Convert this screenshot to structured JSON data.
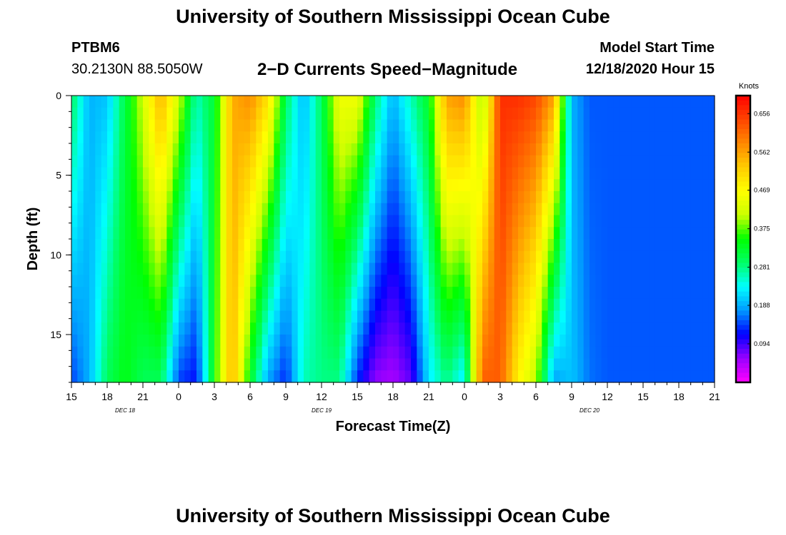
{
  "header": {
    "title": "University of Southern Mississippi Ocean Cube",
    "station_id": "PTBM6",
    "coordinates": "30.2130N 88.5050W",
    "subtitle": "2−D Currents Speed−Magnitude",
    "model_start_label": "Model Start Time",
    "model_start_value": "12/18/2020 Hour 15"
  },
  "footer": {
    "title": "University of Southern Mississippi Ocean Cube"
  },
  "chart_data": {
    "type": "heatmap",
    "title": "2−D Currents Speed−Magnitude",
    "xlabel": "Forecast Time(Z)",
    "ylabel": "Depth (ft)",
    "x_hours_range": [
      0,
      54
    ],
    "x_unit": "forecast hours from 12/18/2020 15Z",
    "x_ticks": [
      "15",
      "18",
      "21",
      "0",
      "3",
      "6",
      "9",
      "12",
      "15",
      "18",
      "21",
      "0",
      "3",
      "6",
      "9",
      "12",
      "15",
      "18",
      "21"
    ],
    "date_labels": [
      {
        "text": "DEC 18",
        "hour": 4.5
      },
      {
        "text": "DEC 19",
        "hour": 21
      },
      {
        "text": "DEC 20",
        "hour": 43.5
      }
    ],
    "y_range": [
      0,
      18
    ],
    "y_ticks": [
      0,
      5,
      10,
      15
    ],
    "y_minor_step": 1,
    "colorbar": {
      "label": "Knots",
      "min": 0.0,
      "max": 0.7,
      "ticks": [
        "0.656",
        "0.562",
        "0.469",
        "0.375",
        "0.281",
        "0.188",
        "0.094"
      ],
      "tick_values": [
        0.656,
        0.562,
        0.469,
        0.375,
        0.281,
        0.188,
        0.094
      ],
      "colors": [
        "#ff00ff",
        "#9900ff",
        "#0000ff",
        "#0099ff",
        "#00ffff",
        "#00ff66",
        "#00ff00",
        "#ccff00",
        "#ffff00",
        "#ffcc00",
        "#ff8800",
        "#ff4400",
        "#ff0000"
      ]
    },
    "column_hours": [
      0,
      1.5,
      3,
      4.5,
      6,
      7.5,
      9,
      10.5,
      12,
      13.5,
      15,
      16.5,
      18,
      19.5,
      21,
      22.5,
      24,
      25.5,
      27,
      28.5,
      30,
      31.5,
      33,
      34.5,
      36,
      37.5,
      39,
      40.5,
      42,
      43.5,
      45,
      46.5,
      48,
      49.5,
      51,
      52.5,
      54
    ],
    "speed_surface": [
      0.3,
      0.19,
      0.2,
      0.31,
      0.42,
      0.55,
      0.42,
      0.26,
      0.32,
      0.55,
      0.58,
      0.5,
      0.3,
      0.19,
      0.3,
      0.45,
      0.45,
      0.29,
      0.19,
      0.26,
      0.33,
      0.56,
      0.58,
      0.38,
      0.66,
      0.66,
      0.64,
      0.56,
      0.19,
      0.15,
      0.15,
      0.15,
      0.15,
      0.15,
      0.15,
      0.15,
      0.15
    ],
    "speed_bottom": [
      0.14,
      0.19,
      0.3,
      0.34,
      0.3,
      0.3,
      0.14,
      0.12,
      0.35,
      0.55,
      0.33,
      0.18,
      0.13,
      0.26,
      0.28,
      0.28,
      0.13,
      0.06,
      0.05,
      0.08,
      0.22,
      0.28,
      0.22,
      0.62,
      0.62,
      0.48,
      0.4,
      0.18,
      0.2,
      0.16,
      0.15,
      0.15,
      0.15,
      0.15,
      0.15,
      0.15,
      0.15
    ]
  }
}
